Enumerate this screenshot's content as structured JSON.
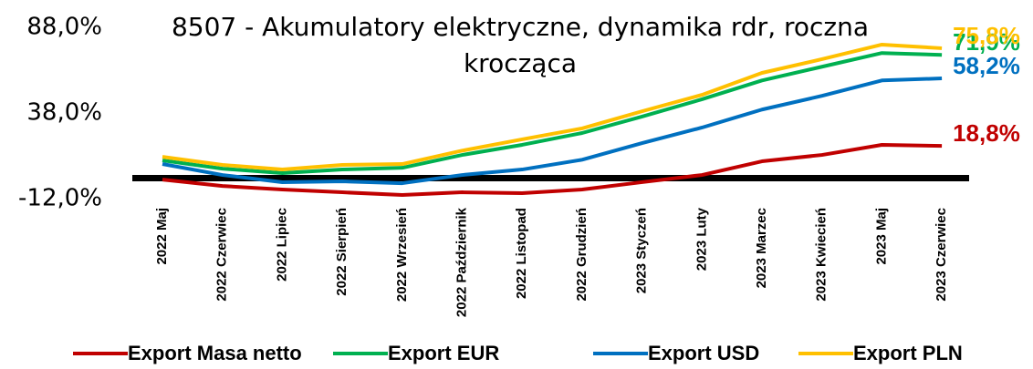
{
  "chart_data": {
    "type": "line",
    "title": "8507 - Akumulatory elektryczne, dynamika rdr, roczna krocząca",
    "categories": [
      "2022 Maj",
      "2022 Czerwiec",
      "2022 Lipiec",
      "2022 Sierpień",
      "2022 Wrzesień",
      "2022 Październik",
      "2022 Listopad",
      "2022 Grudzień",
      "2023 Styczeń",
      "2023 Luty",
      "2023 Marzec",
      "2023 Kwiecień",
      "2023 Maj",
      "2023 Czerwiec"
    ],
    "series": [
      {
        "name": "Export Masa netto",
        "color": "#c00000",
        "values": [
          -0.9,
          -4.6,
          -6.7,
          -8.3,
          -9.9,
          -8.3,
          -8.8,
          -6.7,
          -2.4,
          1.8,
          9.8,
          13.5,
          19.4,
          18.8
        ],
        "value_labels": [
          null,
          null,
          null,
          null,
          null,
          null,
          null,
          null,
          null,
          null,
          null,
          null,
          null,
          "18,8%"
        ]
      },
      {
        "name": "Export EUR",
        "color": "#00b050",
        "values": [
          10.3,
          5.5,
          2.9,
          5.0,
          6.0,
          13.5,
          19.4,
          26.3,
          35.9,
          46.0,
          57.0,
          65.0,
          73.0,
          71.9
        ],
        "value_labels": [
          null,
          null,
          null,
          null,
          null,
          null,
          null,
          null,
          null,
          null,
          null,
          null,
          null,
          "71,9%"
        ]
      },
      {
        "name": "Export USD",
        "color": "#0070c0",
        "values": [
          8.2,
          1.8,
          -2.4,
          -1.9,
          -3.0,
          1.8,
          5.0,
          10.7,
          20.4,
          29.5,
          40.0,
          48.0,
          57.0,
          58.2
        ],
        "value_labels": [
          null,
          null,
          null,
          null,
          null,
          null,
          null,
          null,
          null,
          null,
          null,
          null,
          null,
          "58,2%"
        ]
      },
      {
        "name": "Export PLN",
        "color": "#ffc000",
        "values": [
          12.4,
          7.7,
          5.0,
          7.7,
          8.2,
          16.0,
          22.6,
          29.0,
          39.0,
          48.6,
          61.4,
          69.4,
          77.9,
          75.8
        ],
        "value_labels": [
          null,
          null,
          null,
          null,
          null,
          null,
          null,
          null,
          null,
          null,
          null,
          null,
          null,
          "75,8%"
        ]
      }
    ],
    "ylim": [
      -12,
      88
    ],
    "yticks": [
      {
        "value": 88,
        "label": "88,0%"
      },
      {
        "value": 38,
        "label": "38,0%"
      },
      {
        "value": -12,
        "label": "-12,0%"
      }
    ]
  }
}
